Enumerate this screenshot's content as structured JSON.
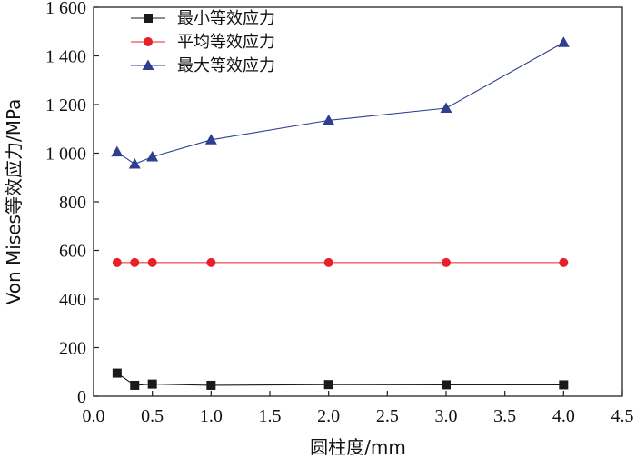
{
  "chart_data": {
    "type": "line",
    "title": "",
    "xlabel": "圆柱度/mm",
    "ylabel": "Von Mises等效应力/MPa",
    "xlim": [
      0,
      4.5
    ],
    "ylim": [
      0,
      1600
    ],
    "x_ticks": [
      0.0,
      0.5,
      1.0,
      1.5,
      2.0,
      2.5,
      3.0,
      3.5,
      4.0,
      4.5
    ],
    "x_tick_labels": [
      "0.0",
      "0.5",
      "1.0",
      "1.5",
      "2.0",
      "2.5",
      "3.0",
      "3.5",
      "4.0",
      "4.5"
    ],
    "y_ticks": [
      0,
      200,
      400,
      600,
      800,
      1000,
      1200,
      1400,
      1600
    ],
    "y_tick_labels": [
      "0",
      "200",
      "400",
      "600",
      "800",
      "1 000",
      "1 200",
      "1 400",
      "1 600"
    ],
    "grid": false,
    "legend_position": "top-left",
    "x": [
      0.2,
      0.35,
      0.5,
      1.0,
      2.0,
      3.0,
      4.0
    ],
    "series": [
      {
        "name": "最小等效应力",
        "marker": "square",
        "color": "#1a1a1a",
        "values": [
          95,
          45,
          50,
          45,
          48,
          47,
          47
        ]
      },
      {
        "name": "平均等效应力",
        "marker": "circle",
        "color": "#e8202a",
        "values": [
          550,
          550,
          550,
          550,
          550,
          550,
          550
        ]
      },
      {
        "name": "最大等效应力",
        "marker": "triangle",
        "color": "#2e3f8f",
        "values": [
          1005,
          955,
          985,
          1055,
          1135,
          1185,
          1455
        ]
      }
    ]
  }
}
